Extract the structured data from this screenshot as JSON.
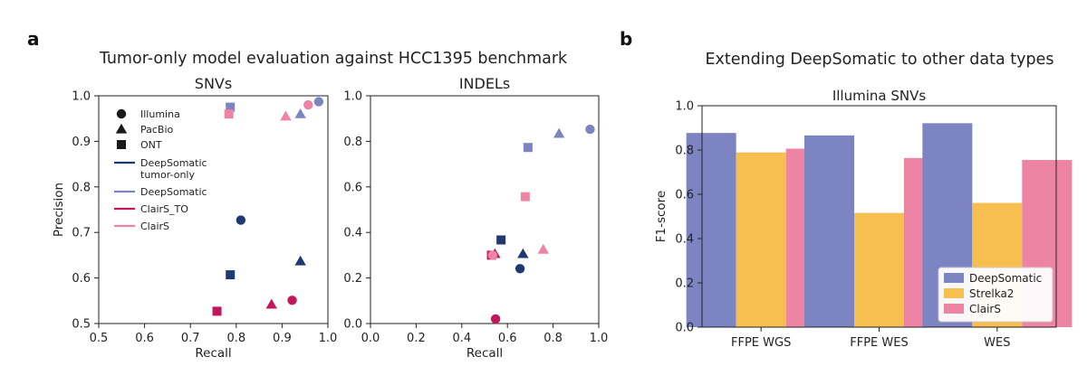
{
  "figure": {
    "panel_a_letter": "a",
    "panel_b_letter": "b",
    "panel_a_title": "Tumor-only model evaluation against HCC1395 benchmark",
    "panel_b_title": "Extending DeepSomatic to other data types"
  },
  "colors": {
    "deepsomatic_tumor_only": "#1f3a73",
    "deepsomatic": "#7c84c1",
    "clairs_to": "#c2185b",
    "clairs": "#ee84a4",
    "strelka2": "#f7bf4f"
  },
  "chart_data": [
    {
      "type": "scatter",
      "title": "SNVs",
      "xlabel": "Recall",
      "ylabel": "Precision",
      "xlim": [
        0.5,
        1.0
      ],
      "ylim": [
        0.5,
        1.0
      ],
      "xticks": [
        "0.5",
        "0.6",
        "0.7",
        "0.8",
        "0.9",
        "1.0"
      ],
      "yticks": [
        "0.5",
        "0.6",
        "0.7",
        "0.8",
        "0.9",
        "1.0"
      ],
      "legend": {
        "placement": "top-left",
        "markers": [
          {
            "label": "Illumina",
            "marker": "circle"
          },
          {
            "label": "PacBio",
            "marker": "triangle"
          },
          {
            "label": "ONT",
            "marker": "square"
          }
        ],
        "lines": [
          {
            "label": "DeepSomatic tumor-only",
            "lines": [
              "DeepSomatic",
              "tumor-only"
            ],
            "color_key": "deepsomatic_tumor_only"
          },
          {
            "label": "DeepSomatic",
            "lines": [
              "DeepSomatic"
            ],
            "color_key": "deepsomatic"
          },
          {
            "label": "ClairS_TO",
            "lines": [
              "ClairS_TO"
            ],
            "color_key": "clairs_to"
          },
          {
            "label": "ClairS",
            "lines": [
              "ClairS"
            ],
            "color_key": "clairs"
          }
        ]
      },
      "points": [
        {
          "method": "DeepSomatic tumor-only",
          "tech": "Illumina",
          "marker": "circle",
          "color_key": "deepsomatic_tumor_only",
          "x": 0.81,
          "y": 0.727
        },
        {
          "method": "DeepSomatic tumor-only",
          "tech": "PacBio",
          "marker": "triangle",
          "color_key": "deepsomatic_tumor_only",
          "x": 0.94,
          "y": 0.637
        },
        {
          "method": "DeepSomatic tumor-only",
          "tech": "ONT",
          "marker": "square",
          "color_key": "deepsomatic_tumor_only",
          "x": 0.787,
          "y": 0.607
        },
        {
          "method": "DeepSomatic",
          "tech": "Illumina",
          "marker": "circle",
          "color_key": "deepsomatic",
          "x": 0.98,
          "y": 0.987
        },
        {
          "method": "DeepSomatic",
          "tech": "PacBio",
          "marker": "triangle",
          "color_key": "deepsomatic",
          "x": 0.94,
          "y": 0.96
        },
        {
          "method": "DeepSomatic",
          "tech": "ONT",
          "marker": "square",
          "color_key": "deepsomatic",
          "x": 0.787,
          "y": 0.975
        },
        {
          "method": "ClairS_TO",
          "tech": "Illumina",
          "marker": "circle",
          "color_key": "clairs_to",
          "x": 0.922,
          "y": 0.551
        },
        {
          "method": "ClairS_TO",
          "tech": "PacBio",
          "marker": "triangle",
          "color_key": "clairs_to",
          "x": 0.877,
          "y": 0.542
        },
        {
          "method": "ClairS_TO",
          "tech": "ONT",
          "marker": "square",
          "color_key": "clairs_to",
          "x": 0.758,
          "y": 0.527
        },
        {
          "method": "ClairS",
          "tech": "Illumina",
          "marker": "circle",
          "color_key": "clairs",
          "x": 0.957,
          "y": 0.98
        },
        {
          "method": "ClairS",
          "tech": "PacBio",
          "marker": "triangle",
          "color_key": "clairs",
          "x": 0.908,
          "y": 0.955
        },
        {
          "method": "ClairS",
          "tech": "ONT",
          "marker": "square",
          "color_key": "clairs",
          "x": 0.784,
          "y": 0.96
        }
      ]
    },
    {
      "type": "scatter",
      "title": "INDELs",
      "xlabel": "Recall",
      "ylabel": "",
      "xlim": [
        0.0,
        1.0
      ],
      "ylim": [
        0.0,
        1.0
      ],
      "xticks": [
        "0.0",
        "0.2",
        "0.4",
        "0.6",
        "0.8",
        "1.0"
      ],
      "yticks": [
        "0.0",
        "0.2",
        "0.4",
        "0.6",
        "0.8",
        "1.0"
      ],
      "points": [
        {
          "method": "DeepSomatic tumor-only",
          "tech": "Illumina",
          "marker": "circle",
          "color_key": "deepsomatic_tumor_only",
          "x": 0.655,
          "y": 0.241
        },
        {
          "method": "DeepSomatic tumor-only",
          "tech": "PacBio",
          "marker": "triangle",
          "color_key": "deepsomatic_tumor_only",
          "x": 0.668,
          "y": 0.306
        },
        {
          "method": "DeepSomatic tumor-only",
          "tech": "ONT",
          "marker": "square",
          "color_key": "deepsomatic_tumor_only",
          "x": 0.572,
          "y": 0.367
        },
        {
          "method": "DeepSomatic",
          "tech": "Illumina",
          "marker": "circle",
          "color_key": "deepsomatic",
          "x": 0.962,
          "y": 0.853
        },
        {
          "method": "DeepSomatic",
          "tech": "PacBio",
          "marker": "triangle",
          "color_key": "deepsomatic",
          "x": 0.826,
          "y": 0.834
        },
        {
          "method": "DeepSomatic",
          "tech": "ONT",
          "marker": "square",
          "color_key": "deepsomatic",
          "x": 0.69,
          "y": 0.773
        },
        {
          "method": "ClairS_TO",
          "tech": "Illumina",
          "marker": "circle",
          "color_key": "clairs_to",
          "x": 0.548,
          "y": 0.02
        },
        {
          "method": "ClairS_TO",
          "tech": "PacBio",
          "marker": "triangle",
          "color_key": "clairs_to",
          "x": 0.545,
          "y": 0.306
        },
        {
          "method": "ClairS_TO",
          "tech": "ONT",
          "marker": "square",
          "color_key": "clairs_to",
          "x": 0.53,
          "y": 0.3
        },
        {
          "method": "ClairS",
          "tech": "Illumina",
          "marker": "circle",
          "color_key": "clairs",
          "x": 0.535,
          "y": 0.3
        },
        {
          "method": "ClairS",
          "tech": "PacBio",
          "marker": "triangle",
          "color_key": "clairs",
          "x": 0.757,
          "y": 0.325
        },
        {
          "method": "ClairS",
          "tech": "ONT",
          "marker": "square",
          "color_key": "clairs",
          "x": 0.678,
          "y": 0.557
        }
      ]
    },
    {
      "type": "bar",
      "title": "Illumina SNVs",
      "xlabel": "",
      "ylabel": "F1-score",
      "ylim": [
        0.0,
        1.0
      ],
      "yticks": [
        "0.0",
        "0.2",
        "0.4",
        "0.6",
        "0.8",
        "1.0"
      ],
      "categories": [
        "FFPE WGS",
        "FFPE WES",
        "WES"
      ],
      "legend": {
        "placement": "bottom-right"
      },
      "series": [
        {
          "name": "DeepSomatic",
          "color_key": "deepsomatic",
          "values": [
            0.877,
            0.866,
            0.921
          ]
        },
        {
          "name": "Strelka2",
          "color_key": "strelka2",
          "values": [
            0.789,
            0.516,
            0.561
          ]
        },
        {
          "name": "ClairS",
          "color_key": "clairs",
          "values": [
            0.806,
            0.764,
            0.755
          ]
        }
      ]
    }
  ]
}
